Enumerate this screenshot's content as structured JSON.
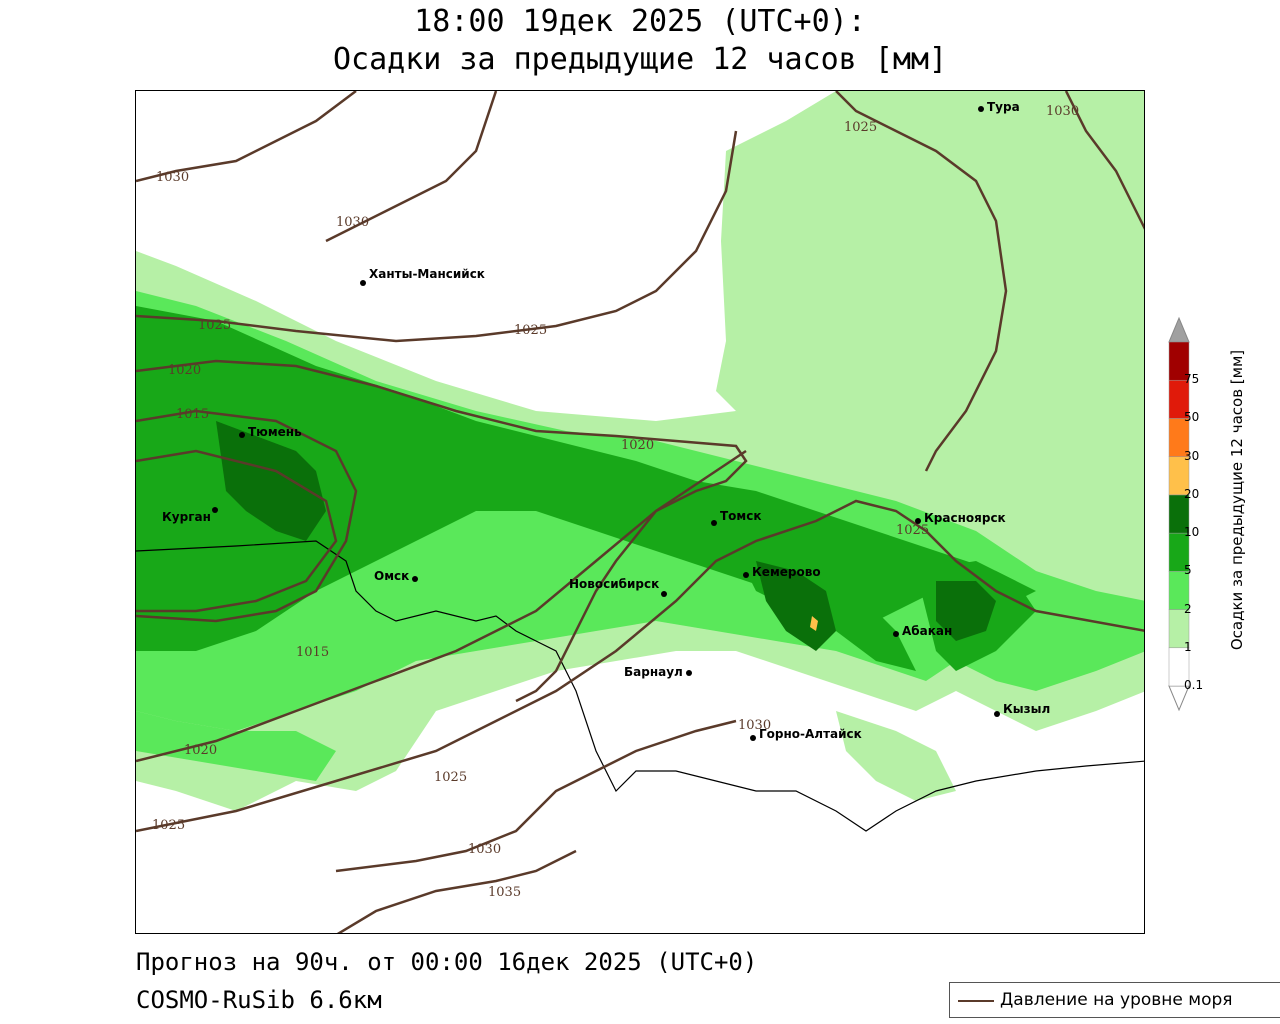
{
  "header": {
    "title_line1": "18:00 19дек 2025 (UTC+0):",
    "title_line2": "Осадки за предыдущие 12 часов [мм]"
  },
  "footer": {
    "forecast": "Прогноз на 90ч. от 00:00 16дек 2025 (UTC+0)",
    "model": "COSMO-RuSib 6.6км"
  },
  "legend": {
    "label": "Давление на уровне моря"
  },
  "colorbar": {
    "title": "Осадки за предыдущие 12 часов [мм]",
    "levels": [
      {
        "label": "0.1",
        "color": "#ffffff"
      },
      {
        "label": "1",
        "color": "#b6f0a6"
      },
      {
        "label": "2",
        "color": "#5ae85a"
      },
      {
        "label": "5",
        "color": "#18a818"
      },
      {
        "label": "10",
        "color": "#0a700a"
      },
      {
        "label": "20",
        "color": "#ffc04a"
      },
      {
        "label": "30",
        "color": "#ff7a1a"
      },
      {
        "label": "50",
        "color": "#e01a0a"
      },
      {
        "label": "75",
        "color": "#a00000"
      }
    ],
    "overflow_color": "#a0a0a0"
  },
  "cities": [
    {
      "name": "Тура",
      "id": "tura"
    },
    {
      "name": "Ханты-Мансийск",
      "id": "khanty-mansiysk"
    },
    {
      "name": "Тюмень",
      "id": "tyumen"
    },
    {
      "name": "Курган",
      "id": "kurgan"
    },
    {
      "name": "Омск",
      "id": "omsk"
    },
    {
      "name": "Новосибирск",
      "id": "novosibirsk"
    },
    {
      "name": "Томск",
      "id": "tomsk"
    },
    {
      "name": "Кемерово",
      "id": "kemerovo"
    },
    {
      "name": "Красноярск",
      "id": "krasnoyarsk"
    },
    {
      "name": "Абакан",
      "id": "abakan"
    },
    {
      "name": "Барнаул",
      "id": "barnaul"
    },
    {
      "name": "Кызыл",
      "id": "kyzyl"
    },
    {
      "name": "Горно-Алтайск",
      "id": "gorno-altaysk"
    }
  ],
  "isobar_labels": [
    "1030",
    "1030",
    "1025",
    "1025",
    "1020",
    "1015",
    "1015",
    "1020",
    "1025",
    "1025",
    "1030",
    "1035",
    "1020",
    "1025",
    "1030",
    "1025",
    "1030"
  ],
  "colors": {
    "isobar": "#5a3a2a",
    "precip_light": "#b6f0a6",
    "precip_1": "#5ae85a",
    "precip_2": "#18a818",
    "precip_5": "#0a700a",
    "precip_10": "#ffc04a"
  }
}
